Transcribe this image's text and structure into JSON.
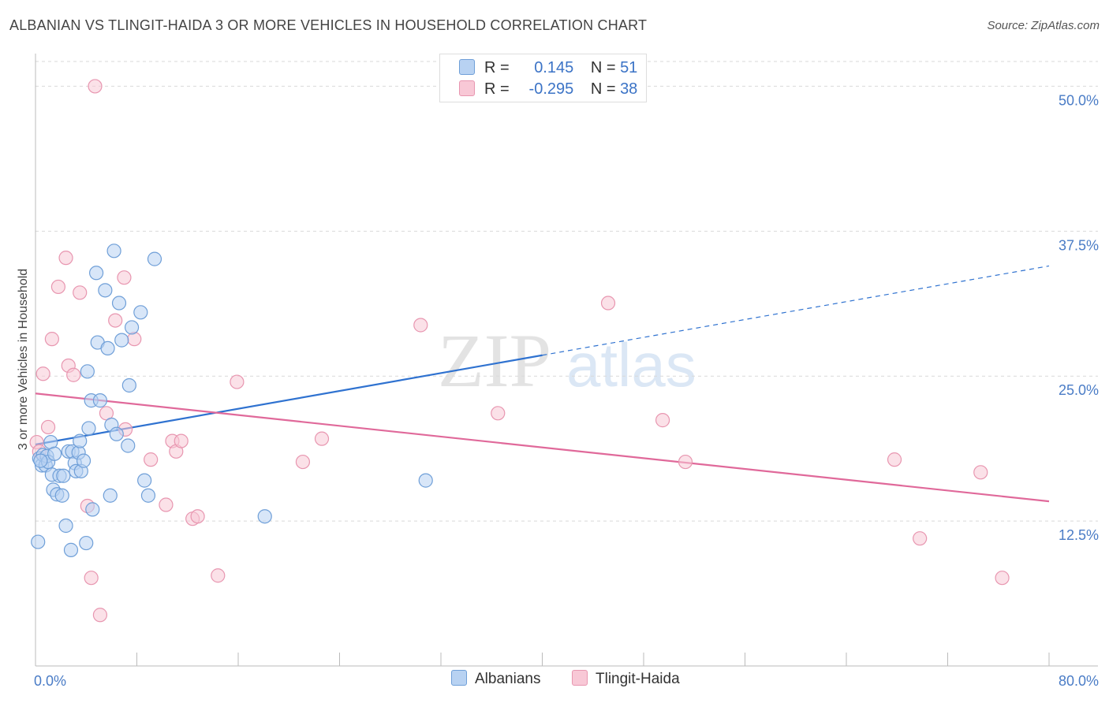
{
  "header": {
    "title": "ALBANIAN VS TLINGIT-HAIDA 3 OR MORE VEHICLES IN HOUSEHOLD CORRELATION CHART",
    "source": "Source: ZipAtlas.com"
  },
  "legend": {
    "albanians": {
      "r_label": "R =",
      "r_value": "0.145",
      "n_label": "N =",
      "n_value": "51"
    },
    "tlingit": {
      "r_label": "R =",
      "r_value": "-0.295",
      "n_label": "N =",
      "n_value": "38"
    }
  },
  "watermark": {
    "zip": "ZIP",
    "atlas": "atlas"
  },
  "colors": {
    "albanian_fill": "#b8d2f2",
    "albanian_stroke": "#6f9fd8",
    "albanian_line": "#2f72d0",
    "tlingit_fill": "#f8c8d6",
    "tlingit_stroke": "#e896b0",
    "tlingit_line": "#e0699a"
  },
  "chart_data": {
    "type": "scatter",
    "title": "ALBANIAN VS TLINGIT-HAIDA 3 OR MORE VEHICLES IN HOUSEHOLD CORRELATION CHART",
    "xlabel": "",
    "ylabel": "3 or more Vehicles in Household",
    "xlim": [
      0,
      80
    ],
    "ylim": [
      0,
      52
    ],
    "x_ticks": [
      "0.0%",
      "80.0%"
    ],
    "y_ticks": [
      {
        "value": 12.5,
        "label": "12.5%"
      },
      {
        "value": 25.0,
        "label": "25.0%"
      },
      {
        "value": 37.5,
        "label": "37.5%"
      },
      {
        "value": 50.0,
        "label": "50.0%"
      }
    ],
    "series": [
      {
        "name": "Albanians",
        "points": [
          [
            0.3,
            17.9
          ],
          [
            0.5,
            17.3
          ],
          [
            0.6,
            18.2
          ],
          [
            0.8,
            17.3
          ],
          [
            0.9,
            18.1
          ],
          [
            1.0,
            17.6
          ],
          [
            1.2,
            19.3
          ],
          [
            1.3,
            16.5
          ],
          [
            1.4,
            15.2
          ],
          [
            1.5,
            18.3
          ],
          [
            1.7,
            14.8
          ],
          [
            1.9,
            16.4
          ],
          [
            2.1,
            14.7
          ],
          [
            2.2,
            16.4
          ],
          [
            2.4,
            12.1
          ],
          [
            2.6,
            18.5
          ],
          [
            2.8,
            10.0
          ],
          [
            2.9,
            18.5
          ],
          [
            3.1,
            17.5
          ],
          [
            3.2,
            16.8
          ],
          [
            3.4,
            18.4
          ],
          [
            3.5,
            19.4
          ],
          [
            3.6,
            16.8
          ],
          [
            3.8,
            17.7
          ],
          [
            4.0,
            10.6
          ],
          [
            4.1,
            25.4
          ],
          [
            4.2,
            20.5
          ],
          [
            4.4,
            22.9
          ],
          [
            4.5,
            13.5
          ],
          [
            4.8,
            33.9
          ],
          [
            4.9,
            27.9
          ],
          [
            5.1,
            22.9
          ],
          [
            5.5,
            32.4
          ],
          [
            5.7,
            27.4
          ],
          [
            5.9,
            14.7
          ],
          [
            6.0,
            20.8
          ],
          [
            6.2,
            35.8
          ],
          [
            6.4,
            20.0
          ],
          [
            6.6,
            31.3
          ],
          [
            6.8,
            28.1
          ],
          [
            7.3,
            19.0
          ],
          [
            7.4,
            24.2
          ],
          [
            7.6,
            29.2
          ],
          [
            8.3,
            30.5
          ],
          [
            8.6,
            16.0
          ],
          [
            8.9,
            14.7
          ],
          [
            9.4,
            35.1
          ],
          [
            0.2,
            10.7
          ],
          [
            0.4,
            17.7
          ],
          [
            18.1,
            12.9
          ],
          [
            30.8,
            16.0
          ]
        ],
        "trend": {
          "x0": 0,
          "y0": 19.1,
          "x1": 40,
          "y1": 26.8,
          "dashed_to_x": 80,
          "dashed_to_y": 34.5
        }
      },
      {
        "name": "Tlingit-Haida",
        "points": [
          [
            0.1,
            19.3
          ],
          [
            0.3,
            18.5
          ],
          [
            0.6,
            25.2
          ],
          [
            1.0,
            20.6
          ],
          [
            1.3,
            28.2
          ],
          [
            1.8,
            32.7
          ],
          [
            2.4,
            35.2
          ],
          [
            2.6,
            25.9
          ],
          [
            3.0,
            25.1
          ],
          [
            3.5,
            32.2
          ],
          [
            4.1,
            13.8
          ],
          [
            4.4,
            7.6
          ],
          [
            5.1,
            4.4
          ],
          [
            5.6,
            21.8
          ],
          [
            6.3,
            29.8
          ],
          [
            7.0,
            33.5
          ],
          [
            7.1,
            20.4
          ],
          [
            7.8,
            28.2
          ],
          [
            9.1,
            17.8
          ],
          [
            10.3,
            13.9
          ],
          [
            10.8,
            19.4
          ],
          [
            11.1,
            18.5
          ],
          [
            11.5,
            19.4
          ],
          [
            12.4,
            12.7
          ],
          [
            12.8,
            12.9
          ],
          [
            14.4,
            7.8
          ],
          [
            15.9,
            24.5
          ],
          [
            21.1,
            17.6
          ],
          [
            22.6,
            19.6
          ],
          [
            30.4,
            29.4
          ],
          [
            36.5,
            21.8
          ],
          [
            45.2,
            31.3
          ],
          [
            49.5,
            21.2
          ],
          [
            51.3,
            17.6
          ],
          [
            67.8,
            17.8
          ],
          [
            69.8,
            11.0
          ],
          [
            74.6,
            16.7
          ],
          [
            76.3,
            7.6
          ],
          [
            4.7,
            50.0
          ]
        ],
        "trend": {
          "x0": 0,
          "y0": 23.5,
          "x1": 80,
          "y1": 14.2
        }
      }
    ]
  },
  "bottom_legend": {
    "albanians": "Albanians",
    "tlingit": "Tlingit-Haida"
  }
}
